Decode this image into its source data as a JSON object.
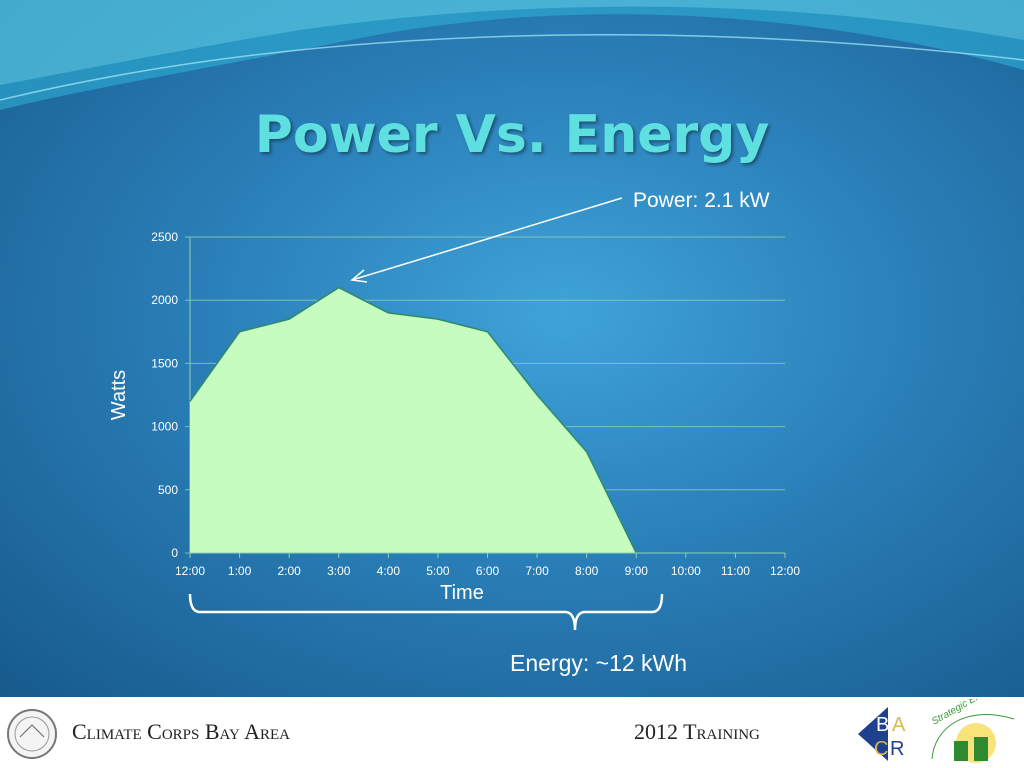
{
  "title": "Power Vs. Energy",
  "annotations": {
    "power": "Power: 2.1 kW",
    "energy": "Energy: ~12 kWh"
  },
  "footer": {
    "left": "Climate Corps Bay Area",
    "right": "2012 Training",
    "logo_bacr": "BACR",
    "logo_sei": "Strategic Energy Innovations"
  },
  "colors": {
    "fill": "#c6fcc0",
    "line": "#2e8a6a",
    "title": "#5fe0e0"
  },
  "chart_data": {
    "type": "area",
    "xlabel": "Time",
    "ylabel": "Watts",
    "categories": [
      "12:00",
      "1:00",
      "2:00",
      "3:00",
      "4:00",
      "5:00",
      "6:00",
      "7:00",
      "8:00",
      "9:00",
      "10:00",
      "11:00",
      "12:00"
    ],
    "values": [
      1200,
      1750,
      1850,
      2100,
      1900,
      1850,
      1750,
      1250,
      800,
      0,
      null,
      null,
      null
    ],
    "yticks": [
      "0",
      "500",
      "1000",
      "1500",
      "2000",
      "2500"
    ],
    "ylim": [
      0,
      2500
    ],
    "grid": true
  }
}
